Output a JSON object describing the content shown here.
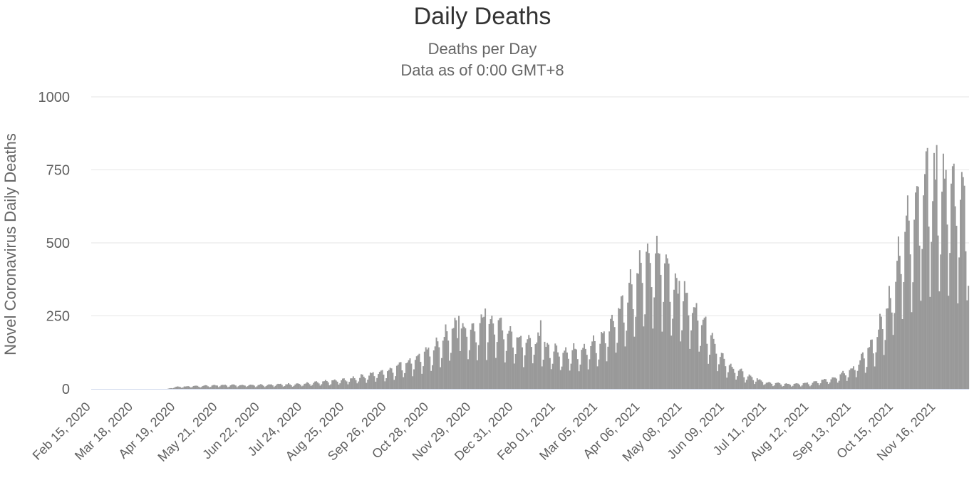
{
  "chart_data": {
    "type": "bar",
    "title": "Daily Deaths",
    "subtitle": [
      "Deaths per Day",
      "Data as of 0:00 GMT+8"
    ],
    "ylabel": "Novel Coronavirus Daily Deaths",
    "xlabel": "",
    "ylim": [
      0,
      1000
    ],
    "yticks": [
      0,
      250,
      500,
      750,
      1000
    ],
    "grid": true,
    "legend": "none",
    "x_start": "2020-02-15",
    "x_end": "2021-12-10",
    "xtick_labels": [
      "Feb 15, 2020",
      "Mar 18, 2020",
      "Apr 19, 2020",
      "May 21, 2020",
      "Jun 22, 2020",
      "Jul 24, 2020",
      "Aug 25, 2020",
      "Sep 26, 2020",
      "Oct 28, 2020",
      "Nov 29, 2020",
      "Dec 31, 2020",
      "Feb 01, 2021",
      "Mar 05, 2021",
      "Apr 06, 2021",
      "May 08, 2021",
      "Jun 09, 2021",
      "Jul 11, 2021",
      "Aug 12, 2021",
      "Sep 13, 2021",
      "Oct 15, 2021",
      "Nov 16, 2021"
    ],
    "series": [
      {
        "color": "#999999",
        "weekly_trend": [
          {
            "x": "2020-02-15",
            "y": 0
          },
          {
            "x": "2020-04-12",
            "y": 0
          },
          {
            "x": "2020-04-19",
            "y": 6
          },
          {
            "x": "2020-05-21",
            "y": 11
          },
          {
            "x": "2020-06-22",
            "y": 12
          },
          {
            "x": "2020-07-24",
            "y": 15
          },
          {
            "x": "2020-08-25",
            "y": 27
          },
          {
            "x": "2020-09-26",
            "y": 53
          },
          {
            "x": "2020-10-28",
            "y": 110
          },
          {
            "x": "2020-11-15",
            "y": 180
          },
          {
            "x": "2020-11-29",
            "y": 175
          },
          {
            "x": "2020-12-15",
            "y": 205
          },
          {
            "x": "2020-12-31",
            "y": 155
          },
          {
            "x": "2021-01-15",
            "y": 145
          },
          {
            "x": "2021-02-01",
            "y": 112
          },
          {
            "x": "2021-02-15",
            "y": 115
          },
          {
            "x": "2021-03-05",
            "y": 135
          },
          {
            "x": "2021-03-20",
            "y": 230
          },
          {
            "x": "2021-04-06",
            "y": 365
          },
          {
            "x": "2021-04-20",
            "y": 395
          },
          {
            "x": "2021-05-08",
            "y": 275
          },
          {
            "x": "2021-05-20",
            "y": 225
          },
          {
            "x": "2021-06-09",
            "y": 75
          },
          {
            "x": "2021-06-25",
            "y": 40
          },
          {
            "x": "2021-07-11",
            "y": 18
          },
          {
            "x": "2021-07-25",
            "y": 14
          },
          {
            "x": "2021-08-12",
            "y": 18
          },
          {
            "x": "2021-08-28",
            "y": 30
          },
          {
            "x": "2021-09-13",
            "y": 55
          },
          {
            "x": "2021-09-28",
            "y": 130
          },
          {
            "x": "2021-10-10",
            "y": 240
          },
          {
            "x": "2021-10-20",
            "y": 430
          },
          {
            "x": "2021-11-01",
            "y": 560
          },
          {
            "x": "2021-11-10",
            "y": 620
          },
          {
            "x": "2021-11-16",
            "y": 600
          },
          {
            "x": "2021-11-25",
            "y": 590
          },
          {
            "x": "2021-12-10",
            "y": 520
          }
        ],
        "peaks": [
          {
            "x": "2020-11-19",
            "y": 250
          },
          {
            "x": "2020-12-09",
            "y": 275
          },
          {
            "x": "2021-01-20",
            "y": 235
          },
          {
            "x": "2021-04-05",
            "y": 475
          },
          {
            "x": "2021-04-12",
            "y": 465
          },
          {
            "x": "2021-04-19",
            "y": 465
          },
          {
            "x": "2021-05-05",
            "y": 370
          },
          {
            "x": "2021-11-09",
            "y": 825
          },
          {
            "x": "2021-11-16",
            "y": 835
          },
          {
            "x": "2021-11-23",
            "y": 750
          }
        ]
      }
    ]
  }
}
